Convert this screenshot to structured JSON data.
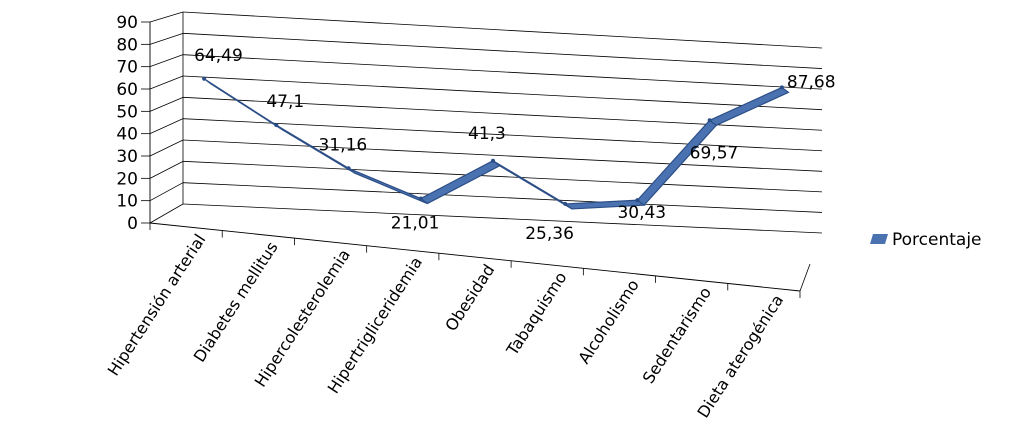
{
  "chart_data": {
    "type": "line",
    "categories": [
      "Hipertensión arterial",
      "Diabetes mellitus",
      "Hipercolesterolemia",
      "Hipertrigliceridemia",
      "Obesidad",
      "Tabaquismo",
      "Alcoholismo",
      "Sedentarismo",
      "Dieta aterogénica"
    ],
    "series": [
      {
        "name": "Porcentaje",
        "values": [
          64.49,
          47.1,
          31.16,
          21.01,
          41.3,
          25.36,
          30.43,
          69.57,
          87.68
        ]
      }
    ],
    "data_labels": [
      "64,49",
      "47,1",
      "31,16",
      "21,01",
      "41,3",
      "25,36",
      "30,43",
      "69,57",
      "87,68"
    ],
    "ylim": [
      0,
      90
    ],
    "yticks": [
      0,
      10,
      20,
      30,
      40,
      50,
      60,
      70,
      80,
      90
    ],
    "grid": true,
    "style": "3d-line",
    "legend_position": "right",
    "colors": {
      "series": "#4a72b0",
      "series_dark": "#2c4e86",
      "grid": "#000000"
    }
  }
}
